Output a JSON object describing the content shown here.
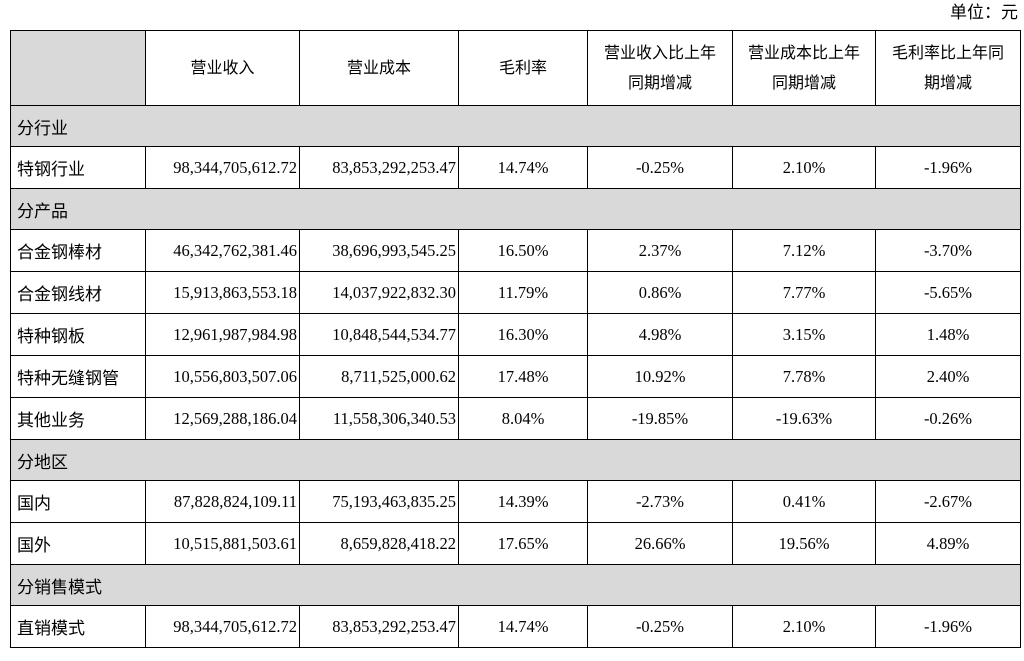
{
  "unit_label": "单位：元",
  "headers": [
    "",
    "营业收入",
    "营业成本",
    "毛利率",
    "营业收入比上年同期增减",
    "营业成本比上年同期增减",
    "毛利率比上年同期增减"
  ],
  "header_lines": [
    [
      ""
    ],
    [
      "营业收入"
    ],
    [
      "营业成本"
    ],
    [
      "毛利率"
    ],
    [
      "营业收入比上年",
      "同期增减"
    ],
    [
      "营业成本比上年",
      "同期增减"
    ],
    [
      "毛利率比上年同",
      "期增减"
    ]
  ],
  "sections": [
    {
      "title": "分行业",
      "rows": [
        [
          "特钢行业",
          "98,344,705,612.72",
          "83,853,292,253.47",
          "14.74%",
          "-0.25%",
          "2.10%",
          "-1.96%"
        ]
      ]
    },
    {
      "title": "分产品",
      "rows": [
        [
          "合金钢棒材",
          "46,342,762,381.46",
          "38,696,993,545.25",
          "16.50%",
          "2.37%",
          "7.12%",
          "-3.70%"
        ],
        [
          "合金钢线材",
          "15,913,863,553.18",
          "14,037,922,832.30",
          "11.79%",
          "0.86%",
          "7.77%",
          "-5.65%"
        ],
        [
          "特种钢板",
          "12,961,987,984.98",
          "10,848,544,534.77",
          "16.30%",
          "4.98%",
          "3.15%",
          "1.48%"
        ],
        [
          "特种无缝钢管",
          "10,556,803,507.06",
          "8,711,525,000.62",
          "17.48%",
          "10.92%",
          "7.78%",
          "2.40%"
        ],
        [
          "其他业务",
          "12,569,288,186.04",
          "11,558,306,340.53",
          "8.04%",
          "-19.85%",
          "-19.63%",
          "-0.26%"
        ]
      ]
    },
    {
      "title": "分地区",
      "rows": [
        [
          "国内",
          "87,828,824,109.11",
          "75,193,463,835.25",
          "14.39%",
          "-2.73%",
          "0.41%",
          "-2.67%"
        ],
        [
          "国外",
          "10,515,881,503.61",
          "8,659,828,418.22",
          "17.65%",
          "26.66%",
          "19.56%",
          "4.89%"
        ]
      ]
    },
    {
      "title": "分销售模式",
      "rows": [
        [
          "直销模式",
          "98,344,705,612.72",
          "83,853,292,253.47",
          "14.74%",
          "-0.25%",
          "2.10%",
          "-1.96%"
        ]
      ]
    }
  ]
}
